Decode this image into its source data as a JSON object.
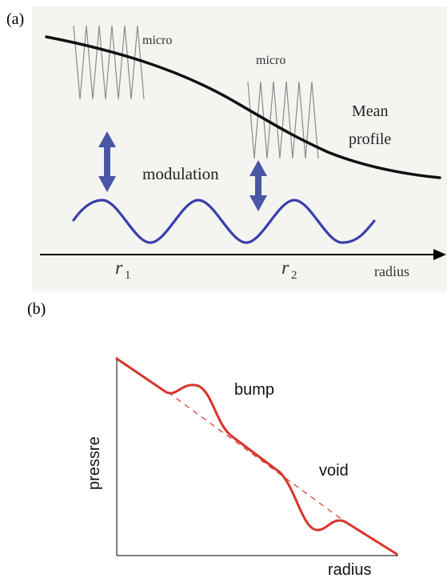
{
  "panel_a": {
    "label": "(a)",
    "micro_label_1": "micro",
    "micro_label_2": "micro",
    "mean_profile_line1": "Mean",
    "mean_profile_line2": "profile",
    "modulation_label": "modulation",
    "r1_letter": "r",
    "r1_sub": "1",
    "r2_letter": "r",
    "r2_sub": "2",
    "axis_label": "radius",
    "colors": {
      "modulation": "#3a3fa8",
      "arrow": "#4a56a6",
      "micro": "#8a8a8a",
      "mean": "#111111"
    }
  },
  "panel_b": {
    "label": "(b)",
    "bump_label": "bump",
    "void_label": "void",
    "ylabel": "pressre",
    "xlabel": "radius",
    "colors": {
      "profile": "#d9342b",
      "trend": "#d9342b",
      "axes": "#000000"
    }
  }
}
